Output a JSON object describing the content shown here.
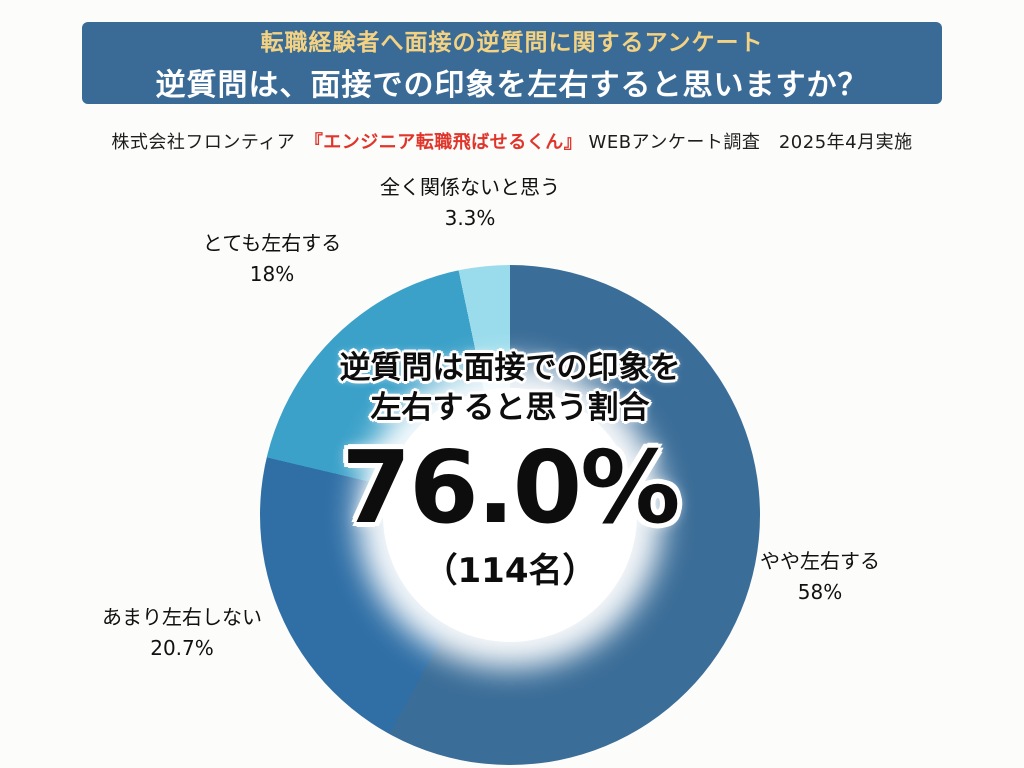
{
  "header": {
    "subtitle": "転職経験者へ面接の逆質問に関するアンケート",
    "title": "逆質問は、面接での印象を左右すると思いますか？",
    "bg_color": "#3a6b96",
    "subtitle_color": "#f3d283",
    "title_color": "#ffffff"
  },
  "source": {
    "prefix": "株式会社フロンティア　",
    "highlight": "『エンジニア転職飛ばせるくん』",
    "suffix": " WEBアンケート調査　2025年4月実施",
    "highlight_color": "#e0352b"
  },
  "chart_data": {
    "type": "pie",
    "title": "逆質問は、面接での印象を左右すると思いますか？",
    "start_angle_deg": 0,
    "direction": "clockwise",
    "legend_position": "none",
    "slices": [
      {
        "label": "やや左右する",
        "value": 58,
        "display": "58%",
        "color": "#3a6d98"
      },
      {
        "label": "あまり左右しない",
        "value": 20.7,
        "display": "20.7%",
        "color": "#2f6fa6"
      },
      {
        "label": "とても左右する",
        "value": 18,
        "display": "18%",
        "color": "#3ba1c9"
      },
      {
        "label": "全く関係ないと思う",
        "value": 3.3,
        "display": "3.3%",
        "color": "#9adcec"
      }
    ],
    "center": {
      "line1": "逆質問は面接での印象を",
      "line2": "左右すると思う割合",
      "big_value": "76.0%",
      "count": "（114名）"
    }
  }
}
